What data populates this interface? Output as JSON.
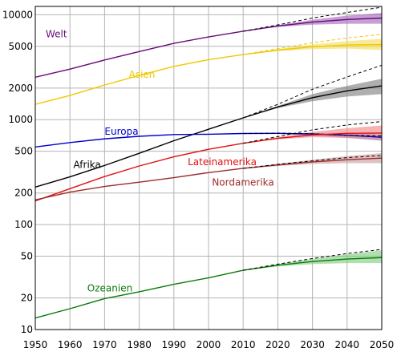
{
  "chart_data": {
    "type": "line",
    "title": "",
    "xlabel": "",
    "ylabel": "",
    "y_scale": "log",
    "xlim": [
      1950,
      2050
    ],
    "ylim": [
      10,
      12000
    ],
    "grid": true,
    "x_ticks": [
      "1950",
      "1960",
      "1970",
      "1980",
      "1990",
      "2000",
      "2010",
      "2020",
      "2030",
      "2040",
      "2050"
    ],
    "y_ticks": [
      {
        "value": 10,
        "label": "10"
      },
      {
        "value": 20,
        "label": "20"
      },
      {
        "value": 50,
        "label": "50"
      },
      {
        "value": 100,
        "label": "100"
      },
      {
        "value": 200,
        "label": "200"
      },
      {
        "value": 500,
        "label": "500"
      },
      {
        "value": 1000,
        "label": "1000"
      },
      {
        "value": 2000,
        "label": "2000"
      },
      {
        "value": 5000,
        "label": "5000"
      },
      {
        "value": 10000,
        "label": "10000"
      }
    ],
    "series": [
      {
        "name": "Welt",
        "color": "#6a0a7a",
        "band_color": "#a060b8",
        "hist_x": [
          1950,
          1960,
          1970,
          1980,
          1990,
          2000,
          2010
        ],
        "hist": [
          2536,
          3033,
          3701,
          4458,
          5331,
          6145,
          6958
        ],
        "proj_x": [
          2010,
          2020,
          2030,
          2040,
          2050
        ],
        "median": [
          6958,
          7800,
          8500,
          9000,
          9300
        ],
        "upper": [
          6958,
          7950,
          8950,
          9800,
          10400
        ],
        "lower": [
          6958,
          7650,
          8050,
          8200,
          8200
        ],
        "high": [
          6958,
          8000,
          9300,
          10500,
          11800
        ]
      },
      {
        "name": "Asien",
        "color": "#f0c800",
        "band_color": "#f5dc50",
        "hist_x": [
          1950,
          1960,
          1970,
          1980,
          1990,
          2000,
          2010
        ],
        "hist": [
          1400,
          1700,
          2140,
          2640,
          3220,
          3730,
          4170
        ],
        "proj_x": [
          2010,
          2020,
          2030,
          2040,
          2050
        ],
        "median": [
          4170,
          4600,
          4950,
          5150,
          5200
        ],
        "upper": [
          4170,
          4700,
          5200,
          5600,
          5900
        ],
        "lower": [
          4170,
          4500,
          4700,
          4750,
          4600
        ],
        "high": [
          4170,
          4750,
          5400,
          6000,
          6500
        ]
      },
      {
        "name": "Afrika",
        "color": "#000000",
        "band_color": "#7a7a7a",
        "hist_x": [
          1950,
          1960,
          1970,
          1980,
          1990,
          2000,
          2010
        ],
        "hist": [
          228,
          285,
          366,
          478,
          630,
          810,
          1040
        ],
        "proj_x": [
          2010,
          2020,
          2030,
          2040,
          2050
        ],
        "median": [
          1040,
          1320,
          1620,
          1880,
          2100
        ],
        "upper": [
          1040,
          1350,
          1750,
          2100,
          2450
        ],
        "lower": [
          1040,
          1290,
          1500,
          1660,
          1750
        ],
        "high": [
          1040,
          1400,
          1950,
          2550,
          3300
        ]
      },
      {
        "name": "Europa",
        "color": "#0000cc",
        "band_color": "#8080d8",
        "hist_x": [
          1950,
          1960,
          1970,
          1980,
          1990,
          2000,
          2010
        ],
        "hist": [
          549,
          605,
          657,
          694,
          721,
          726,
          738
        ],
        "proj_x": [
          2010,
          2020,
          2030,
          2040,
          2050
        ],
        "median": [
          738,
          740,
          730,
          710,
          680
        ],
        "upper": [
          738,
          745,
          745,
          735,
          720
        ],
        "lower": [
          738,
          735,
          705,
          670,
          630
        ],
        "high": [
          738,
          745,
          735,
          710,
          700
        ]
      },
      {
        "name": "Lateinamerika",
        "color": "#e01010",
        "band_color": "#f08080",
        "hist_x": [
          1950,
          1960,
          1970,
          1980,
          1990,
          2000,
          2010
        ],
        "hist": [
          168,
          220,
          287,
          362,
          443,
          522,
          596
        ],
        "proj_x": [
          2010,
          2020,
          2030,
          2040,
          2050
        ],
        "median": [
          596,
          665,
          715,
          740,
          745
        ],
        "upper": [
          596,
          680,
          765,
          830,
          880
        ],
        "lower": [
          596,
          650,
          680,
          670,
          640
        ],
        "high": [
          596,
          690,
          800,
          890,
          960
        ]
      },
      {
        "name": "Nordamerika",
        "color": "#9e2a2a",
        "band_color": "#c89a9a",
        "hist_x": [
          1950,
          1960,
          1970,
          1980,
          1990,
          2000,
          2010
        ],
        "hist": [
          172,
          204,
          231,
          254,
          280,
          313,
          344
        ],
        "proj_x": [
          2010,
          2020,
          2030,
          2040,
          2050
        ],
        "median": [
          344,
          370,
          396,
          415,
          430
        ],
        "upper": [
          344,
          380,
          415,
          450,
          480
        ],
        "lower": [
          344,
          362,
          378,
          385,
          385
        ],
        "high": [
          344,
          375,
          405,
          435,
          455
        ]
      },
      {
        "name": "Ozeanien",
        "color": "#0a7a0a",
        "band_color": "#7acb7a",
        "hist_x": [
          1950,
          1960,
          1970,
          1980,
          1990,
          2000,
          2010
        ],
        "hist": [
          12.9,
          15.8,
          19.7,
          22.9,
          27.0,
          31.1,
          36.7
        ],
        "proj_x": [
          2010,
          2020,
          2030,
          2040,
          2050
        ],
        "median": [
          36.7,
          41,
          44.5,
          47,
          48.5
        ],
        "upper": [
          36.7,
          42,
          47,
          52,
          57
        ],
        "lower": [
          36.7,
          40,
          42,
          43,
          43
        ],
        "high": [
          36.7,
          42,
          47.5,
          53,
          58
        ]
      }
    ],
    "labels": [
      {
        "text": "Welt",
        "series": "Welt",
        "x": 1953,
        "y": 6100
      },
      {
        "text": "Asien",
        "series": "Asien",
        "x": 1977,
        "y": 2500
      },
      {
        "text": "Europa",
        "series": "Europa",
        "x": 1970,
        "y": 720
      },
      {
        "text": "Afrika",
        "series": "Afrika",
        "x": 1961,
        "y": 345
      },
      {
        "text": "Lateinamerika",
        "series": "Lateinamerika",
        "x": 1994,
        "y": 370
      },
      {
        "text": "Nordamerika",
        "series": "Nordamerika",
        "x": 2001,
        "y": 235
      },
      {
        "text": "Ozeanien",
        "series": "Ozeanien",
        "x": 1965,
        "y": 23
      }
    ]
  }
}
